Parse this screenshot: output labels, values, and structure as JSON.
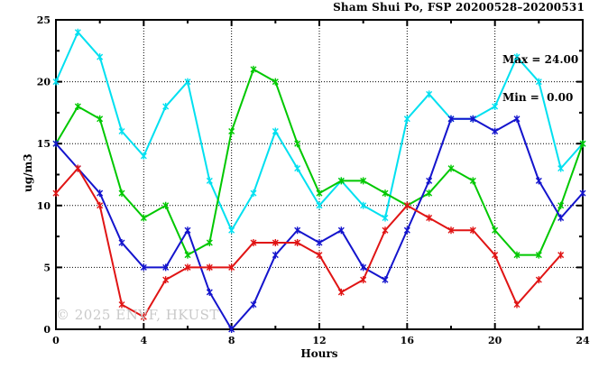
{
  "header": {
    "title": "Sham Shui Po, FSP 20200528–20200531"
  },
  "legend": {
    "max_label": "Max = 24.00",
    "min_label": "Min =  0.00"
  },
  "axes": {
    "ylabel": "ug/m3",
    "xlabel": "Hours"
  },
  "watermark": "© 2025 ENVF, HKUST",
  "chart_data": {
    "type": "line",
    "title": "Sham Shui Po, FSP 20200528–20200531",
    "xlabel": "Hours",
    "ylabel": "ug/m3",
    "xlim": [
      0,
      24
    ],
    "ylim": [
      0,
      25
    ],
    "x_major_ticks": [
      0,
      4,
      8,
      12,
      16,
      20,
      24
    ],
    "x_minor_ticks": [
      2,
      6,
      10,
      14,
      18,
      22
    ],
    "y_major_ticks": [
      0,
      5,
      10,
      15,
      20,
      25
    ],
    "y_minor_ticks": [
      2.5,
      7.5,
      12.5,
      17.5,
      22.5
    ],
    "grid": "dotted black lines at major ticks, both axes",
    "legend_position": "top-right inside plot",
    "annotations": [
      "Max = 24.00",
      "Min =  0.00"
    ],
    "x": [
      0,
      1,
      2,
      3,
      4,
      5,
      6,
      7,
      8,
      9,
      10,
      11,
      12,
      13,
      14,
      15,
      16,
      17,
      18,
      19,
      20,
      21,
      22,
      23,
      24
    ],
    "series": [
      {
        "name": "cyan-line",
        "color": "#00e0f0",
        "values": [
          20,
          24,
          22,
          16,
          14,
          18,
          20,
          12,
          8,
          11,
          16,
          13,
          10,
          12,
          10,
          9,
          17,
          19,
          17,
          17,
          18,
          22,
          20,
          13,
          15
        ]
      },
      {
        "name": "green-line",
        "color": "#00c800",
        "values": [
          15,
          18,
          17,
          11,
          9,
          10,
          6,
          7,
          16,
          21,
          20,
          15,
          11,
          12,
          12,
          11,
          10,
          11,
          13,
          12,
          8,
          6,
          6,
          10,
          15
        ]
      },
      {
        "name": "blue-line",
        "color": "#1414cd",
        "values": [
          15,
          13,
          11,
          7,
          5,
          5,
          8,
          3,
          0,
          2,
          6,
          8,
          7,
          8,
          5,
          4,
          8,
          12,
          17,
          17,
          16,
          17,
          12,
          9,
          11
        ]
      },
      {
        "name": "red-line",
        "color": "#e01414",
        "values": [
          11,
          13,
          10,
          2,
          1,
          4,
          5,
          5,
          5,
          7,
          7,
          7,
          6,
          3,
          4,
          8,
          10,
          9,
          8,
          8,
          6,
          2,
          4,
          6
        ]
      }
    ]
  }
}
